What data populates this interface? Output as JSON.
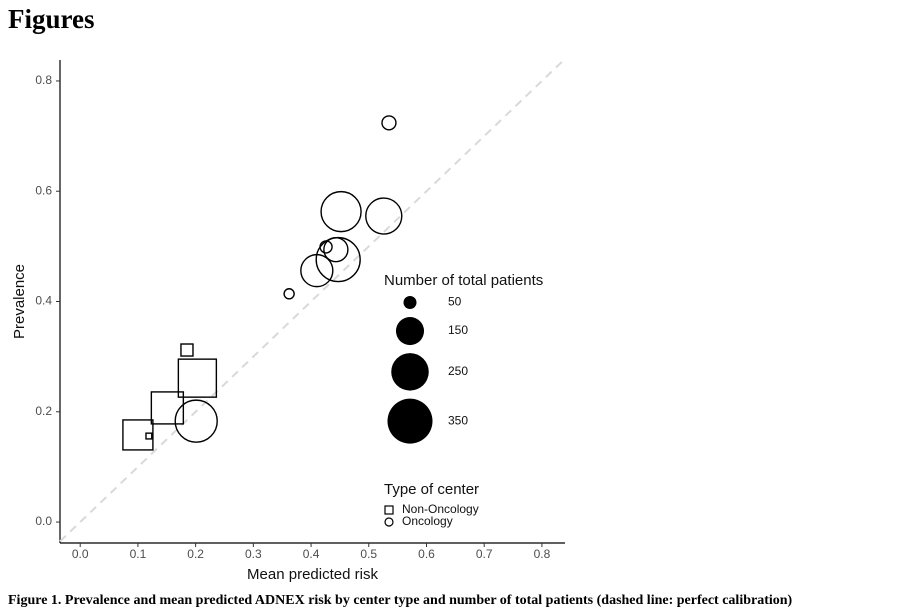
{
  "header": {
    "title": "Figures"
  },
  "chart_data": {
    "type": "scatter",
    "x_label": "Mean predicted risk",
    "y_label": "Prevalence",
    "xlim": [
      -0.035,
      0.84
    ],
    "ylim": [
      -0.038,
      0.838
    ],
    "xticks": [
      {
        "value": 0,
        "label": "0.0"
      },
      {
        "value": 0.1,
        "label": "0.1"
      },
      {
        "value": 0.2,
        "label": "0.2"
      },
      {
        "value": 0.3,
        "label": "0.3"
      },
      {
        "value": 0.4,
        "label": "0.4"
      },
      {
        "value": 0.5,
        "label": "0.5"
      },
      {
        "value": 0.6,
        "label": "0.6"
      },
      {
        "value": 0.7,
        "label": "0.7"
      },
      {
        "value": 0.8,
        "label": "0.8"
      }
    ],
    "yticks": [
      {
        "value": 0,
        "label": "0.0"
      },
      {
        "value": 0.2,
        "label": "0.2"
      },
      {
        "value": 0.4,
        "label": "0.4"
      },
      {
        "value": 0.6,
        "label": "0.6"
      },
      {
        "value": 0.8,
        "label": "0.8"
      }
    ],
    "reference_line": true,
    "series": [
      {
        "name": "Non-Oncology",
        "shape": "square",
        "color": "#000000",
        "x": [
          0.185,
          0.203,
          0.151,
          0.1,
          0.119
        ],
        "values": [
          0.312,
          0.261,
          0.207,
          0.158,
          0.156
        ],
        "sizes": [
          46,
          256,
          188,
          168,
          28
        ]
      },
      {
        "name": "Oncology",
        "shape": "circle",
        "color": "#000000",
        "x": [
          0.535,
          0.452,
          0.526,
          0.426,
          0.443,
          0.447,
          0.41,
          0.362,
          0.201
        ],
        "values": [
          0.724,
          0.563,
          0.555,
          0.499,
          0.494,
          0.476,
          0.456,
          0.414,
          0.183
        ],
        "sizes": [
          54,
          281,
          232,
          46,
          116,
          335,
          188,
          39,
          308
        ]
      }
    ],
    "size_legend": {
      "title": "Number of total patients",
      "values": [
        50,
        150,
        250,
        350
      ]
    },
    "shape_legend_title": "Type of center"
  },
  "caption": "Figure 1. Prevalence and mean predicted ADNEX risk by center type and number of total patients (dashed line: perfect calibration)"
}
